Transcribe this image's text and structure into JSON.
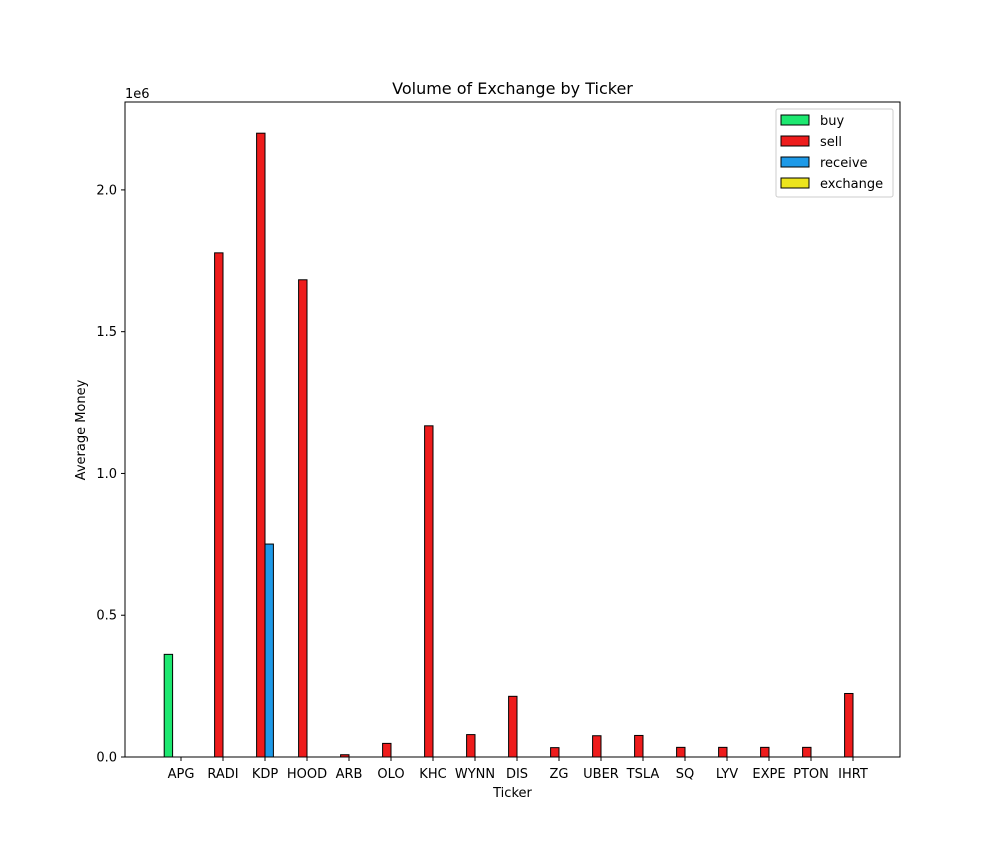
{
  "chart_data": {
    "type": "bar",
    "title": "Volume of Exchange by Ticker",
    "xlabel": "Ticker",
    "ylabel": "Average Money",
    "y_offset_label": "1e6",
    "ylim": [
      0,
      2310000
    ],
    "yticks": [
      0,
      500000,
      1000000,
      1500000,
      2000000
    ],
    "ytick_labels": [
      "0.0",
      "0.5",
      "1.0",
      "1.5",
      "2.0"
    ],
    "legend_position": "top-right",
    "categories": [
      "APG",
      "RADI",
      "KDP",
      "HOOD",
      "ARB",
      "OLO",
      "KHC",
      "WYNN",
      "DIS",
      "ZG",
      "UBER",
      "TSLA",
      "SQ",
      "LYV",
      "EXPE",
      "PTON",
      "IHRT"
    ],
    "series": [
      {
        "name": "buy",
        "color": "#1de870",
        "values": [
          362000,
          0,
          0,
          0,
          0,
          0,
          0,
          0,
          0,
          0,
          0,
          0,
          0,
          0,
          0,
          0,
          0
        ]
      },
      {
        "name": "sell",
        "color": "#ee1c1c",
        "values": [
          0,
          1778000,
          2200000,
          1683000,
          8000,
          48000,
          1168000,
          79000,
          214000,
          33000,
          75000,
          76000,
          34000,
          34000,
          34000,
          34000,
          224000
        ]
      },
      {
        "name": "receive",
        "color": "#1e9ae8",
        "values": [
          0,
          0,
          751000,
          0,
          0,
          0,
          0,
          0,
          0,
          0,
          0,
          0,
          0,
          0,
          0,
          0,
          0
        ]
      },
      {
        "name": "exchange",
        "color": "#ece41e",
        "values": [
          0,
          0,
          0,
          0,
          0,
          0,
          0,
          0,
          0,
          0,
          0,
          0,
          0,
          0,
          0,
          0,
          0
        ]
      }
    ]
  }
}
